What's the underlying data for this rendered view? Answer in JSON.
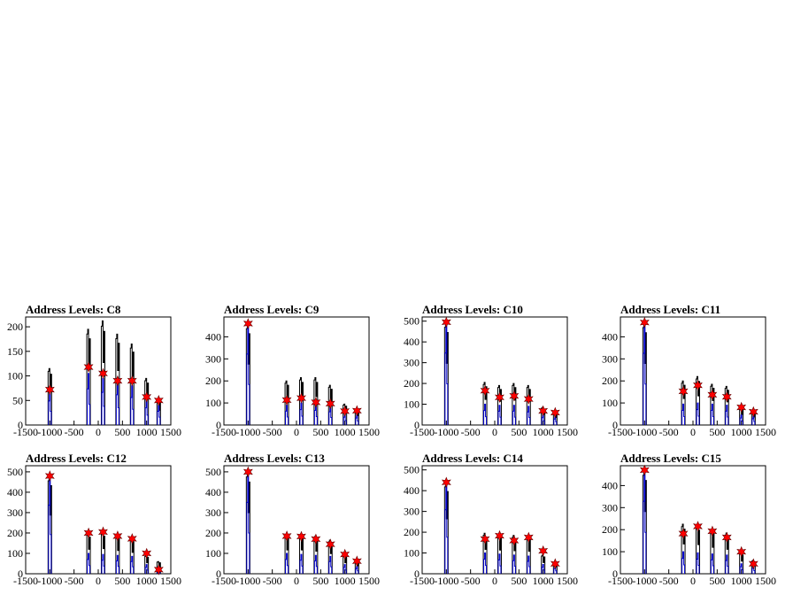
{
  "chart_data": [
    {
      "type": "histogram",
      "title": "Address Levels: C8",
      "xlim": [
        -1500,
        1500
      ],
      "ylim": [
        0,
        220
      ],
      "xticks": [
        "-1500",
        "-1000",
        "-500",
        "0",
        "500",
        "1000",
        "1500"
      ],
      "yticks": [
        0,
        50,
        100,
        150,
        200
      ],
      "black_spikes": [
        [
          -1000,
          115
        ],
        [
          -200,
          195
        ],
        [
          100,
          212
        ],
        [
          400,
          185
        ],
        [
          700,
          165
        ],
        [
          1000,
          95
        ],
        [
          1250,
          50
        ]
      ],
      "blue_spikes": [
        [
          -1000,
          70
        ],
        [
          -200,
          105
        ],
        [
          100,
          95
        ],
        [
          400,
          88
        ],
        [
          700,
          80
        ],
        [
          1000,
          50
        ],
        [
          1250,
          40
        ]
      ],
      "markers": [
        [
          -1000,
          72
        ],
        [
          -200,
          118
        ],
        [
          100,
          105
        ],
        [
          400,
          90
        ],
        [
          700,
          90
        ],
        [
          1000,
          57
        ],
        [
          1250,
          50
        ]
      ]
    },
    {
      "type": "histogram",
      "title": "Address Levels: C9",
      "xlim": [
        -1500,
        1500
      ],
      "ylim": [
        0,
        490
      ],
      "xticks": [
        "-1500",
        "-1000",
        "-500",
        "0",
        "500",
        "1000",
        "1500"
      ],
      "yticks": [
        0,
        100,
        200,
        300,
        400
      ],
      "black_spikes": [
        [
          -1000,
          460
        ],
        [
          -200,
          200
        ],
        [
          100,
          215
        ],
        [
          400,
          215
        ],
        [
          700,
          180
        ],
        [
          1000,
          95
        ],
        [
          1250,
          70
        ]
      ],
      "blue_spikes": [
        [
          -1000,
          460
        ],
        [
          -200,
          90
        ],
        [
          100,
          100
        ],
        [
          400,
          95
        ],
        [
          700,
          85
        ],
        [
          1000,
          50
        ],
        [
          1250,
          45
        ]
      ],
      "markers": [
        [
          -1000,
          460
        ],
        [
          -200,
          113
        ],
        [
          100,
          122
        ],
        [
          400,
          103
        ],
        [
          700,
          97
        ],
        [
          1000,
          63
        ],
        [
          1250,
          65
        ]
      ]
    },
    {
      "type": "histogram",
      "title": "Address Levels: C10",
      "xlim": [
        -1500,
        1500
      ],
      "ylim": [
        0,
        520
      ],
      "xticks": [
        "-1500",
        "-1000",
        "-500",
        "0",
        "500",
        "1000",
        "1500"
      ],
      "yticks": [
        0,
        100,
        200,
        300,
        400,
        500
      ],
      "black_spikes": [
        [
          -1000,
          495
        ],
        [
          -200,
          205
        ],
        [
          100,
          190
        ],
        [
          400,
          200
        ],
        [
          700,
          190
        ],
        [
          1000,
          85
        ],
        [
          1250,
          60
        ]
      ],
      "blue_spikes": [
        [
          -1000,
          495
        ],
        [
          -200,
          100
        ],
        [
          100,
          95
        ],
        [
          400,
          95
        ],
        [
          700,
          90
        ],
        [
          1000,
          50
        ],
        [
          1250,
          40
        ]
      ],
      "markers": [
        [
          -1000,
          495
        ],
        [
          -200,
          165
        ],
        [
          100,
          133
        ],
        [
          400,
          140
        ],
        [
          700,
          125
        ],
        [
          1000,
          68
        ],
        [
          1250,
          60
        ]
      ]
    },
    {
      "type": "histogram",
      "title": "Address Levels: C11",
      "xlim": [
        -1500,
        1500
      ],
      "ylim": [
        0,
        490
      ],
      "xticks": [
        "-1500",
        "-1000",
        "-500",
        "0",
        "500",
        "1000",
        "1500"
      ],
      "yticks": [
        0,
        100,
        200,
        300,
        400
      ],
      "black_spikes": [
        [
          -1000,
          465
        ],
        [
          -200,
          200
        ],
        [
          100,
          220
        ],
        [
          400,
          185
        ],
        [
          700,
          175
        ],
        [
          1000,
          80
        ],
        [
          1250,
          60
        ]
      ],
      "blue_spikes": [
        [
          -1000,
          465
        ],
        [
          -200,
          95
        ],
        [
          100,
          100
        ],
        [
          400,
          95
        ],
        [
          700,
          90
        ],
        [
          1000,
          45
        ],
        [
          1250,
          40
        ]
      ],
      "markers": [
        [
          -1000,
          465
        ],
        [
          -200,
          153
        ],
        [
          100,
          180
        ],
        [
          400,
          137
        ],
        [
          700,
          128
        ],
        [
          1000,
          80
        ],
        [
          1250,
          60
        ]
      ]
    },
    {
      "type": "histogram",
      "title": "Address Levels: C12",
      "xlim": [
        -1500,
        1500
      ],
      "ylim": [
        0,
        530
      ],
      "xticks": [
        "-1500",
        "-1000",
        "-500",
        "0",
        "500",
        "1000",
        "1500"
      ],
      "yticks": [
        0,
        100,
        200,
        300,
        400,
        500
      ],
      "black_spikes": [
        [
          -1000,
          480
        ],
        [
          -200,
          200
        ],
        [
          100,
          205
        ],
        [
          400,
          190
        ],
        [
          700,
          175
        ],
        [
          1000,
          90
        ],
        [
          1250,
          60
        ]
      ],
      "blue_spikes": [
        [
          -1000,
          480
        ],
        [
          -200,
          100
        ],
        [
          100,
          95
        ],
        [
          400,
          90
        ],
        [
          700,
          85
        ],
        [
          1000,
          45
        ],
        [
          1250,
          30
        ]
      ],
      "markers": [
        [
          -1000,
          480
        ],
        [
          -200,
          200
        ],
        [
          100,
          205
        ],
        [
          400,
          185
        ],
        [
          700,
          172
        ],
        [
          1000,
          100
        ],
        [
          1250,
          20
        ]
      ]
    },
    {
      "type": "histogram",
      "title": "Address Levels: C13",
      "xlim": [
        -1500,
        1500
      ],
      "ylim": [
        0,
        530
      ],
      "xticks": [
        "-1500",
        "-1000",
        "-500",
        "0",
        "500",
        "1000",
        "1500"
      ],
      "yticks": [
        0,
        100,
        200,
        300,
        400,
        500
      ],
      "black_spikes": [
        [
          -1000,
          500
        ],
        [
          -200,
          195
        ],
        [
          100,
          195
        ],
        [
          400,
          185
        ],
        [
          700,
          165
        ],
        [
          1000,
          90
        ],
        [
          1250,
          65
        ]
      ],
      "blue_spikes": [
        [
          -1000,
          500
        ],
        [
          -200,
          100
        ],
        [
          100,
          95
        ],
        [
          400,
          90
        ],
        [
          700,
          85
        ],
        [
          1000,
          45
        ],
        [
          1250,
          35
        ]
      ],
      "markers": [
        [
          -1000,
          500
        ],
        [
          -200,
          185
        ],
        [
          100,
          183
        ],
        [
          400,
          170
        ],
        [
          700,
          145
        ],
        [
          1000,
          95
        ],
        [
          1250,
          62
        ]
      ]
    },
    {
      "type": "histogram",
      "title": "Address Levels: C14",
      "xlim": [
        -1500,
        1500
      ],
      "ylim": [
        0,
        520
      ],
      "xticks": [
        "-1500",
        "-1000",
        "-500",
        "0",
        "500",
        "1000",
        "1500"
      ],
      "yticks": [
        0,
        100,
        200,
        300,
        400,
        500
      ],
      "black_spikes": [
        [
          -1000,
          440
        ],
        [
          -200,
          195
        ],
        [
          100,
          190
        ],
        [
          400,
          185
        ],
        [
          700,
          180
        ],
        [
          1000,
          90
        ],
        [
          1250,
          55
        ]
      ],
      "blue_spikes": [
        [
          -1000,
          440
        ],
        [
          -200,
          100
        ],
        [
          100,
          95
        ],
        [
          400,
          90
        ],
        [
          700,
          85
        ],
        [
          1000,
          45
        ],
        [
          1250,
          35
        ]
      ],
      "markers": [
        [
          -1000,
          440
        ],
        [
          -200,
          167
        ],
        [
          100,
          183
        ],
        [
          400,
          160
        ],
        [
          700,
          175
        ],
        [
          1000,
          110
        ],
        [
          1250,
          48
        ]
      ]
    },
    {
      "type": "histogram",
      "title": "Address Levels: C15",
      "xlim": [
        -1500,
        1500
      ],
      "ylim": [
        0,
        490
      ],
      "xticks": [
        "-1500",
        "-1000",
        "-500",
        "0",
        "500",
        "1000",
        "1500"
      ],
      "yticks": [
        0,
        100,
        200,
        300,
        400
      ],
      "black_spikes": [
        [
          -1000,
          470
        ],
        [
          -200,
          225
        ],
        [
          100,
          220
        ],
        [
          400,
          200
        ],
        [
          700,
          185
        ],
        [
          1000,
          95
        ],
        [
          1250,
          60
        ]
      ],
      "blue_spikes": [
        [
          -1000,
          470
        ],
        [
          -200,
          100
        ],
        [
          100,
          95
        ],
        [
          400,
          90
        ],
        [
          700,
          85
        ],
        [
          1000,
          45
        ],
        [
          1250,
          35
        ]
      ],
      "markers": [
        [
          -1000,
          470
        ],
        [
          -200,
          182
        ],
        [
          100,
          215
        ],
        [
          400,
          193
        ],
        [
          700,
          165
        ],
        [
          1000,
          100
        ],
        [
          1250,
          45
        ]
      ]
    }
  ],
  "colors": {
    "line_black": "#000000",
    "line_blue": "#0000cc",
    "marker_fill": "#ff0000",
    "marker_edge": "#660000"
  }
}
